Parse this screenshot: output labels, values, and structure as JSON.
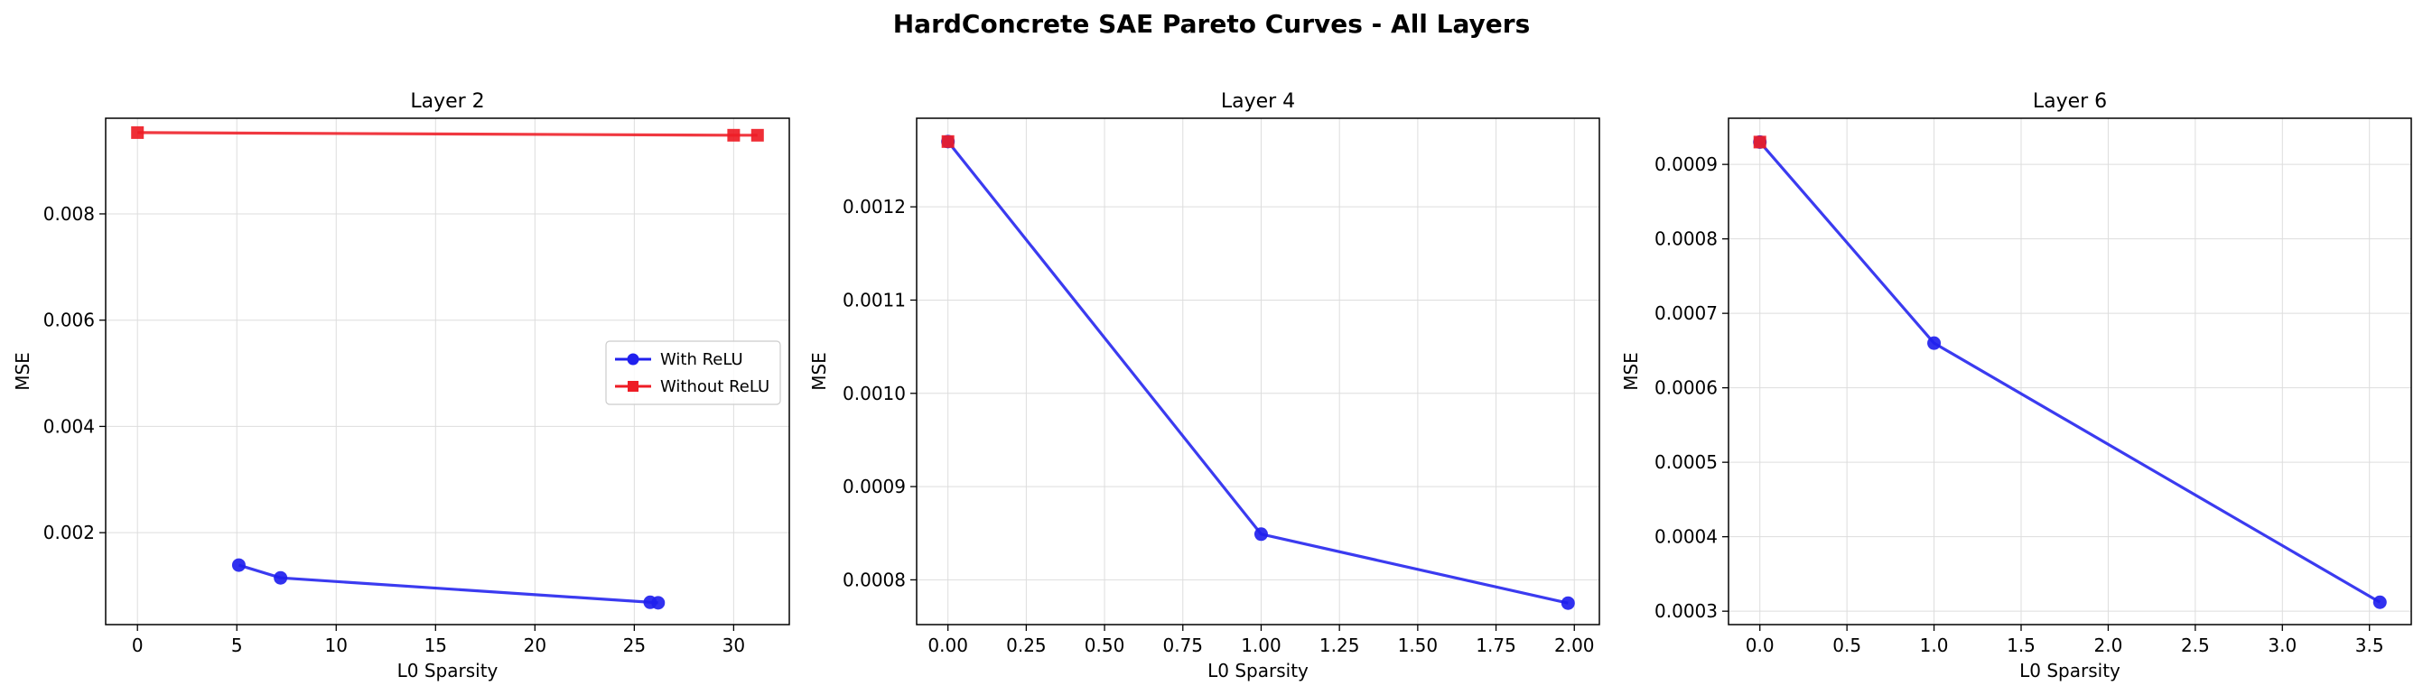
{
  "figure_title": "HardConcrete SAE Pareto Curves - All Layers",
  "colors": {
    "with_relu": "#2020ee",
    "without_relu": "#ee1c25",
    "grid": "#dddddd",
    "axis": "#000000"
  },
  "chart_data": [
    {
      "type": "line",
      "title": "Layer 2",
      "xlabel": "L0 Sparsity",
      "ylabel": "MSE",
      "xlim": [
        -1.6,
        32.8
      ],
      "ylim": [
        0.00027,
        0.0098
      ],
      "xticks": [
        0,
        5,
        10,
        15,
        20,
        25,
        30
      ],
      "xtick_labels": [
        "0",
        "5",
        "10",
        "15",
        "20",
        "25",
        "30"
      ],
      "yticks": [
        0.002,
        0.004,
        0.006,
        0.008
      ],
      "ytick_labels": [
        "0.002",
        "0.004",
        "0.006",
        "0.008"
      ],
      "grid": true,
      "legend": "center-right",
      "series": [
        {
          "name": "With ReLU",
          "marker": "circle",
          "color": "#2020ee",
          "x": [
            5.1,
            7.2,
            25.8,
            26.2
          ],
          "y": [
            0.00139,
            0.00115,
            0.00069,
            0.00068
          ]
        },
        {
          "name": "Without ReLU",
          "marker": "square",
          "color": "#ee1c25",
          "x": [
            0.0,
            30.0,
            31.2
          ],
          "y": [
            0.00953,
            0.00948,
            0.00948
          ]
        }
      ]
    },
    {
      "type": "line",
      "title": "Layer 4",
      "xlabel": "L0 Sparsity",
      "ylabel": "MSE",
      "xlim": [
        -0.1,
        2.08
      ],
      "ylim": [
        0.000752,
        0.001295
      ],
      "xticks": [
        0,
        0.25,
        0.5,
        0.75,
        1.0,
        1.25,
        1.5,
        1.75,
        2.0
      ],
      "xtick_labels": [
        "0.00",
        "0.25",
        "0.50",
        "0.75",
        "1.00",
        "1.25",
        "1.50",
        "1.75",
        "2.00"
      ],
      "yticks": [
        0.0008,
        0.0009,
        0.001,
        0.0011,
        0.0012
      ],
      "ytick_labels": [
        "0.0008",
        "0.0009",
        "0.0010",
        "0.0011",
        "0.0012"
      ],
      "grid": true,
      "series": [
        {
          "name": "With ReLU",
          "marker": "circle",
          "color": "#2020ee",
          "x": [
            0.0,
            1.0,
            1.98
          ],
          "y": [
            0.00127,
            0.000849,
            0.000775
          ]
        },
        {
          "name": "Without ReLU",
          "marker": "square",
          "color": "#ee1c25",
          "x": [
            0.0
          ],
          "y": [
            0.00127
          ]
        }
      ]
    },
    {
      "type": "line",
      "title": "Layer 6",
      "xlabel": "L0 Sparsity",
      "ylabel": "MSE",
      "xlim": [
        -0.18,
        3.74
      ],
      "ylim": [
        0.000282,
        0.000962
      ],
      "xticks": [
        0,
        0.5,
        1.0,
        1.5,
        2.0,
        2.5,
        3.0,
        3.5
      ],
      "xtick_labels": [
        "0.0",
        "0.5",
        "1.0",
        "1.5",
        "2.0",
        "2.5",
        "3.0",
        "3.5"
      ],
      "yticks": [
        0.0003,
        0.0004,
        0.0005,
        0.0006,
        0.0007,
        0.0008,
        0.0009
      ],
      "ytick_labels": [
        "0.0003",
        "0.0004",
        "0.0005",
        "0.0006",
        "0.0007",
        "0.0008",
        "0.0009"
      ],
      "grid": true,
      "series": [
        {
          "name": "With ReLU",
          "marker": "circle",
          "color": "#2020ee",
          "x": [
            0.0,
            1.0,
            3.56
          ],
          "y": [
            0.00093,
            0.00066,
            0.000312
          ]
        },
        {
          "name": "Without ReLU",
          "marker": "square",
          "color": "#ee1c25",
          "x": [
            0.0
          ],
          "y": [
            0.00093
          ]
        }
      ]
    }
  ]
}
